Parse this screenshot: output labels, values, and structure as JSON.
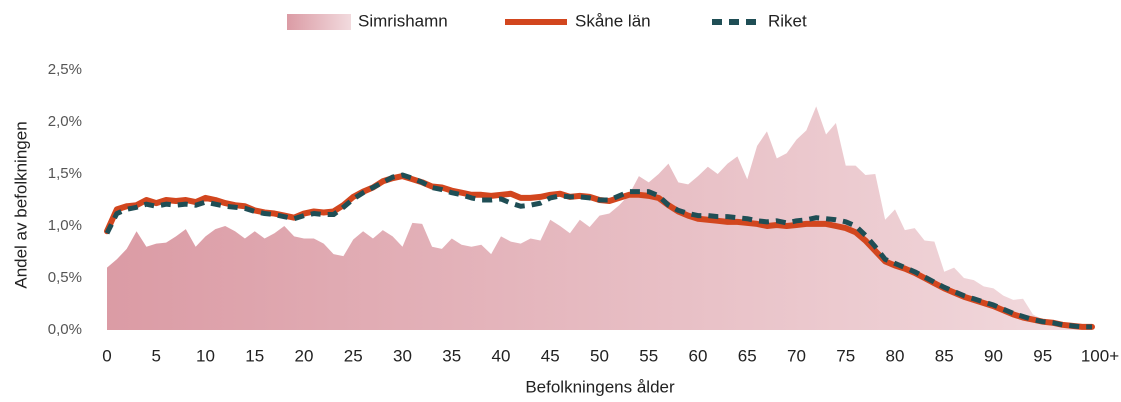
{
  "chart_data": {
    "type": "line",
    "categories": [
      "0",
      null,
      null,
      null,
      null,
      "5",
      null,
      null,
      null,
      null,
      "10",
      null,
      null,
      null,
      null,
      "15",
      null,
      null,
      null,
      null,
      "20",
      null,
      null,
      null,
      null,
      "25",
      null,
      null,
      null,
      null,
      "30",
      null,
      null,
      null,
      null,
      "35",
      null,
      null,
      null,
      null,
      "40",
      null,
      null,
      null,
      null,
      "45",
      null,
      null,
      null,
      null,
      "50",
      null,
      null,
      null,
      null,
      "55",
      null,
      null,
      null,
      null,
      "60",
      null,
      null,
      null,
      null,
      "65",
      null,
      null,
      null,
      null,
      "70",
      null,
      null,
      null,
      null,
      "75",
      null,
      null,
      null,
      null,
      "80",
      null,
      null,
      null,
      null,
      "85",
      null,
      null,
      null,
      null,
      "90",
      null,
      null,
      null,
      null,
      "95",
      null,
      null,
      null,
      null,
      "100+"
    ],
    "series": [
      {
        "name": "Simrishamn",
        "type": "area",
        "color": "#d996a0",
        "values": [
          0.6,
          0.68,
          0.78,
          0.95,
          0.8,
          0.83,
          0.84,
          0.9,
          0.97,
          0.8,
          0.9,
          0.97,
          1.0,
          0.95,
          0.88,
          0.95,
          0.88,
          0.93,
          1.0,
          0.9,
          0.88,
          0.88,
          0.83,
          0.73,
          0.71,
          0.87,
          0.95,
          0.88,
          0.96,
          0.9,
          0.8,
          1.03,
          1.02,
          0.8,
          0.78,
          0.88,
          0.82,
          0.8,
          0.82,
          0.73,
          0.9,
          0.85,
          0.83,
          0.88,
          0.86,
          1.06,
          1.0,
          0.93,
          1.06,
          0.99,
          1.1,
          1.12,
          1.2,
          1.3,
          1.48,
          1.42,
          1.5,
          1.6,
          1.42,
          1.4,
          1.48,
          1.57,
          1.5,
          1.6,
          1.67,
          1.45,
          1.77,
          1.91,
          1.65,
          1.7,
          1.83,
          1.92,
          2.15,
          1.88,
          1.99,
          1.58,
          1.58,
          1.49,
          1.5,
          1.06,
          1.16,
          0.96,
          0.98,
          0.86,
          0.85,
          0.56,
          0.6,
          0.5,
          0.48,
          0.42,
          0.4,
          0.33,
          0.29,
          0.3,
          0.15,
          0.1,
          0.08,
          0.06,
          0.04,
          0.03,
          0.02
        ]
      },
      {
        "name": "Skåne län",
        "type": "line",
        "color": "#d2461e",
        "dashed": false,
        "values": [
          0.95,
          1.16,
          1.19,
          1.2,
          1.25,
          1.22,
          1.25,
          1.24,
          1.25,
          1.23,
          1.27,
          1.25,
          1.22,
          1.2,
          1.19,
          1.15,
          1.13,
          1.12,
          1.1,
          1.08,
          1.12,
          1.14,
          1.13,
          1.14,
          1.2,
          1.28,
          1.33,
          1.37,
          1.43,
          1.46,
          1.48,
          1.45,
          1.42,
          1.38,
          1.37,
          1.34,
          1.32,
          1.3,
          1.3,
          1.29,
          1.3,
          1.31,
          1.27,
          1.27,
          1.28,
          1.3,
          1.31,
          1.28,
          1.29,
          1.28,
          1.25,
          1.24,
          1.27,
          1.3,
          1.3,
          1.29,
          1.27,
          1.2,
          1.14,
          1.1,
          1.07,
          1.06,
          1.05,
          1.04,
          1.04,
          1.03,
          1.02,
          1.0,
          1.01,
          1.0,
          1.01,
          1.02,
          1.02,
          1.02,
          1.0,
          0.98,
          0.94,
          0.86,
          0.76,
          0.66,
          0.62,
          0.59,
          0.55,
          0.5,
          0.45,
          0.4,
          0.36,
          0.32,
          0.29,
          0.26,
          0.23,
          0.19,
          0.15,
          0.12,
          0.1,
          0.08,
          0.07,
          0.05,
          0.04,
          0.03,
          0.03
        ]
      },
      {
        "name": "Riket",
        "type": "line",
        "color": "#1f4e55",
        "dashed": true,
        "values": [
          0.93,
          1.12,
          1.16,
          1.18,
          1.21,
          1.19,
          1.21,
          1.2,
          1.21,
          1.2,
          1.23,
          1.21,
          1.19,
          1.18,
          1.17,
          1.14,
          1.12,
          1.11,
          1.09,
          1.07,
          1.1,
          1.12,
          1.11,
          1.11,
          1.18,
          1.26,
          1.32,
          1.37,
          1.42,
          1.47,
          1.49,
          1.46,
          1.42,
          1.37,
          1.35,
          1.32,
          1.3,
          1.27,
          1.25,
          1.25,
          1.26,
          1.22,
          1.19,
          1.2,
          1.22,
          1.27,
          1.29,
          1.28,
          1.28,
          1.27,
          1.25,
          1.25,
          1.29,
          1.33,
          1.33,
          1.33,
          1.29,
          1.2,
          1.15,
          1.12,
          1.1,
          1.1,
          1.09,
          1.09,
          1.08,
          1.07,
          1.05,
          1.04,
          1.05,
          1.03,
          1.05,
          1.06,
          1.08,
          1.07,
          1.06,
          1.04,
          1.0,
          0.91,
          0.8,
          0.68,
          0.64,
          0.6,
          0.56,
          0.51,
          0.46,
          0.41,
          0.37,
          0.33,
          0.3,
          0.27,
          0.24,
          0.2,
          0.16,
          0.13,
          0.1,
          0.08,
          0.07,
          0.05,
          0.04,
          0.03,
          0.03
        ]
      }
    ],
    "xlabel": "Befolkningens ålder",
    "ylabel": "Andel av befolkningen",
    "ylim": [
      0,
      2.5
    ],
    "yticks": [
      {
        "value": 0,
        "label": "0,0%"
      },
      {
        "value": 0.5,
        "label": "0,5%"
      },
      {
        "value": 1,
        "label": "1,0%"
      },
      {
        "value": 1.5,
        "label": "1,5%"
      },
      {
        "value": 2,
        "label": "2,0%"
      },
      {
        "value": 2.5,
        "label": "2,5%"
      }
    ],
    "grid": false,
    "legend": "top"
  }
}
